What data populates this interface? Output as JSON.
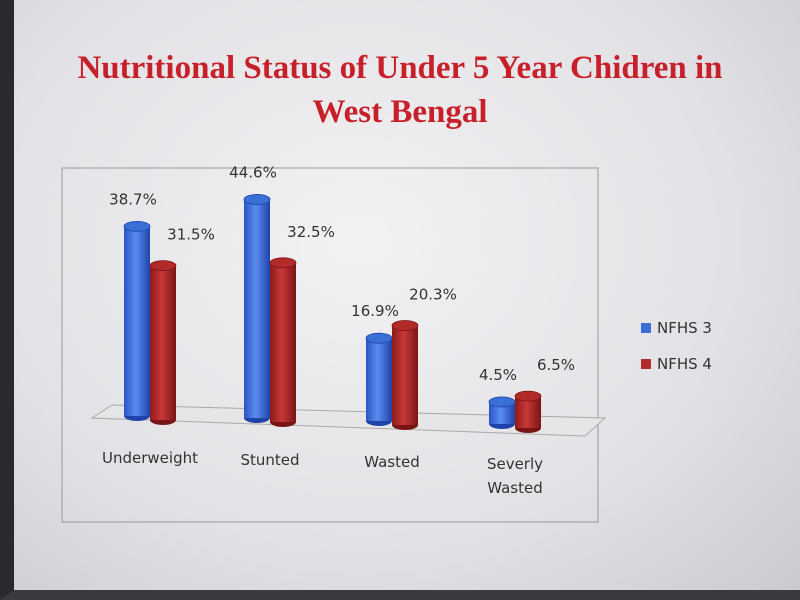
{
  "chart_data": {
    "type": "bar",
    "title": "Nutritional Status of Under 5 Year Chidren in West Bengal",
    "categories": [
      "Underweight",
      "Stunted",
      "Wasted",
      "Severly Wasted"
    ],
    "series": [
      {
        "name": "NFHS 3",
        "color": "#3a6fd8",
        "values": [
          38.7,
          44.6,
          16.9,
          4.5
        ],
        "value_labels": [
          "38.7%",
          "44.6%",
          "16.9%",
          "4.5%"
        ]
      },
      {
        "name": "NFHS 4",
        "color": "#b22a2a",
        "values": [
          31.5,
          32.5,
          20.3,
          6.5
        ],
        "value_labels": [
          "31.5%",
          "32.5%",
          "20.3%",
          "6.5%"
        ]
      }
    ],
    "legend": "right"
  }
}
